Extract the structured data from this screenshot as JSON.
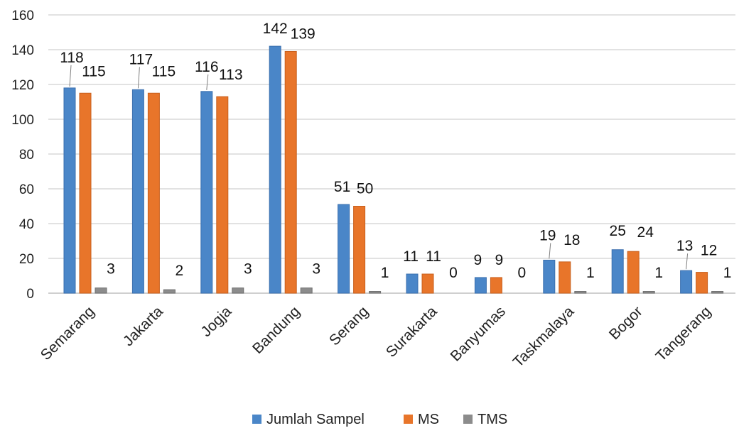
{
  "chart_data": {
    "type": "bar",
    "categories": [
      "Semarang",
      "Jakarta",
      "Jogja",
      "Bandung",
      "Serang",
      "Surakarta",
      "Banyumas",
      "Taskmalaya",
      "Bogor",
      "Tangerang"
    ],
    "series": [
      {
        "name": "Jumlah Sampel",
        "color": "#4a86c8",
        "values": [
          118,
          117,
          116,
          142,
          51,
          11,
          9,
          19,
          25,
          13
        ]
      },
      {
        "name": "MS",
        "color": "#e8752a",
        "values": [
          115,
          115,
          113,
          139,
          50,
          11,
          9,
          18,
          24,
          12
        ]
      },
      {
        "name": "TMS",
        "color": "#8c8c8c",
        "values": [
          3,
          2,
          3,
          3,
          1,
          0,
          0,
          1,
          1,
          1
        ]
      }
    ],
    "ylim": [
      0,
      160
    ],
    "yticks": [
      0,
      20,
      40,
      60,
      80,
      100,
      120,
      140,
      160
    ],
    "grid": true,
    "legend_position": "bottom-center"
  }
}
